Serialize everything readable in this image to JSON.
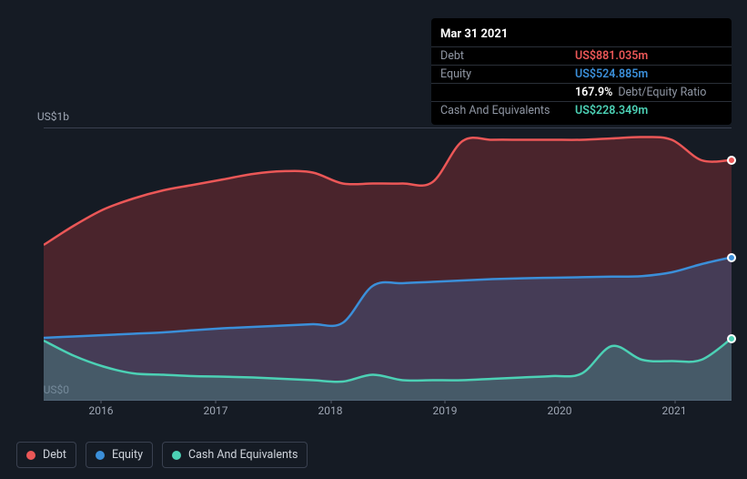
{
  "chart": {
    "type": "area",
    "background_color": "#151b24",
    "plot_bg": "transparent",
    "grid_color": "#3a4150",
    "ylim": [
      0,
      1000
    ],
    "ylabels": [
      {
        "v": 0,
        "label": "US$0"
      },
      {
        "v": 1000,
        "label": "US$1b"
      }
    ],
    "x_points": [
      "2015-07",
      "2015-10",
      "2016-01",
      "2016-04",
      "2016-07",
      "2016-10",
      "2017-01",
      "2017-04",
      "2017-07",
      "2017-10",
      "2018-01",
      "2018-04",
      "2018-07",
      "2018-10",
      "2019-01",
      "2019-04",
      "2019-07",
      "2019-10",
      "2020-01",
      "2020-04",
      "2020-07",
      "2020-10",
      "2021-01",
      "2021-03"
    ],
    "x_tick_labels": [
      "2016",
      "2017",
      "2018",
      "2019",
      "2020",
      "2021"
    ],
    "x_tick_positions": [
      0.0833,
      0.25,
      0.4167,
      0.5833,
      0.75,
      0.9167
    ],
    "series": [
      {
        "key": "debt",
        "label": "Debt",
        "color": "#eb5757",
        "fill": "rgba(176,54,60,0.35)",
        "values": [
          570,
          640,
          700,
          740,
          770,
          790,
          810,
          830,
          840,
          835,
          795,
          795,
          795,
          800,
          950,
          955,
          955,
          955,
          955,
          960,
          965,
          955,
          880,
          881
        ]
      },
      {
        "key": "equity",
        "label": "Equity",
        "color": "#3b8fd9",
        "fill": "rgba(59,105,165,0.35)",
        "values": [
          230,
          235,
          240,
          245,
          250,
          258,
          265,
          270,
          275,
          280,
          285,
          420,
          430,
          435,
          440,
          445,
          448,
          450,
          452,
          454,
          456,
          470,
          500,
          525
        ]
      },
      {
        "key": "cash",
        "label": "Cash And Equivalents",
        "color": "#4cd1b5",
        "fill": "rgba(76,209,181,0.20)",
        "values": [
          220,
          165,
          125,
          100,
          95,
          90,
          88,
          85,
          80,
          75,
          70,
          95,
          75,
          75,
          75,
          80,
          85,
          90,
          100,
          200,
          150,
          145,
          150,
          228
        ]
      }
    ]
  },
  "tooltip": {
    "date": "Mar 31 2021",
    "rows": [
      {
        "label": "Debt",
        "value": "US$881.035m",
        "color": "#eb5757"
      },
      {
        "label": "Equity",
        "value": "US$524.885m",
        "color": "#3b8fd9"
      },
      {
        "label": "",
        "value": "167.9%",
        "secondary": "Debt/Equity Ratio",
        "color": "#ffffff"
      },
      {
        "label": "Cash And Equivalents",
        "value": "US$228.349m",
        "color": "#4cd1b5"
      }
    ]
  },
  "legend": [
    {
      "label": "Debt",
      "color": "#eb5757"
    },
    {
      "label": "Equity",
      "color": "#3b8fd9"
    },
    {
      "label": "Cash And Equivalents",
      "color": "#4cd1b5"
    }
  ]
}
